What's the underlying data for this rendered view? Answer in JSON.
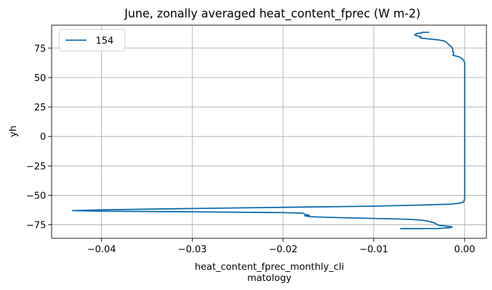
{
  "chart_data": {
    "type": "line",
    "title": "June, zonally averaged heat_content_fprec (W m-2)",
    "xlabel_lines": [
      "heat_content_fprec_monthly_cli",
      "matology"
    ],
    "ylabel": "yh",
    "xlim": [
      -0.0455,
      0.0024
    ],
    "ylim": [
      -86.5,
      94.5
    ],
    "x_ticks": [
      -0.04,
      -0.03,
      -0.02,
      -0.01,
      0.0
    ],
    "x_tick_labels": [
      "−0.04",
      "−0.03",
      "−0.02",
      "−0.01",
      "0.00"
    ],
    "y_ticks": [
      -75,
      -50,
      -25,
      0,
      25,
      50,
      75
    ],
    "y_tick_labels": [
      "−75",
      "−50",
      "−25",
      "0",
      "25",
      "50",
      "75"
    ],
    "grid": true,
    "legend_position": "upper-left",
    "series": [
      {
        "name": "154",
        "color": "#0868ac",
        "points": [
          [
            -0.0039,
            88.4
          ],
          [
            -0.0047,
            88.4
          ],
          [
            -0.0047,
            87.8
          ],
          [
            -0.0052,
            87.5
          ],
          [
            -0.0055,
            86.3
          ],
          [
            -0.0053,
            85.5
          ],
          [
            -0.0048,
            84.6
          ],
          [
            -0.0049,
            83.6
          ],
          [
            -0.0043,
            83.1
          ],
          [
            -0.0038,
            82.7
          ],
          [
            -0.0031,
            82.2
          ],
          [
            -0.0023,
            81.2
          ],
          [
            -0.002,
            79.9
          ],
          [
            -0.0018,
            78.4
          ],
          [
            -0.0016,
            77.1
          ],
          [
            -0.0014,
            75.6
          ],
          [
            -0.0013,
            74.0
          ],
          [
            -0.0013,
            72.0
          ],
          [
            -0.0012,
            70.5
          ],
          [
            -0.0013,
            69.0
          ],
          [
            -0.0009,
            68.2
          ],
          [
            -0.0006,
            67.6
          ],
          [
            -0.0003,
            66.1
          ],
          [
            -0.0001,
            64.6
          ],
          [
            0.0,
            62.5
          ],
          [
            0.0,
            60.0
          ],
          [
            0.0,
            40.0
          ],
          [
            0.0,
            20.0
          ],
          [
            0.0,
            0.0
          ],
          [
            0.0,
            -20.0
          ],
          [
            0.0,
            -40.0
          ],
          [
            0.0,
            -53.0
          ],
          [
            -0.0001,
            -55.5
          ],
          [
            -0.0005,
            -56.6
          ],
          [
            -0.0015,
            -57.5
          ],
          [
            -0.005,
            -58.3
          ],
          [
            -0.01,
            -59.2
          ],
          [
            -0.02,
            -60.2
          ],
          [
            -0.03,
            -61.2
          ],
          [
            -0.04,
            -62.3
          ],
          [
            -0.0432,
            -63.0
          ],
          [
            -0.04,
            -63.5
          ],
          [
            -0.03,
            -64.0
          ],
          [
            -0.02,
            -64.7
          ],
          [
            -0.0178,
            -65.2
          ],
          [
            -0.0175,
            -66.5
          ],
          [
            -0.0171,
            -67.0
          ],
          [
            -0.0176,
            -67.4
          ],
          [
            -0.017,
            -68.2
          ],
          [
            -0.015,
            -68.7
          ],
          [
            -0.012,
            -69.3
          ],
          [
            -0.009,
            -69.8
          ],
          [
            -0.006,
            -70.4
          ],
          [
            -0.0045,
            -71.3
          ],
          [
            -0.0038,
            -72.4
          ],
          [
            -0.0033,
            -73.5
          ],
          [
            -0.0031,
            -74.5
          ],
          [
            -0.0029,
            -75.4
          ],
          [
            -0.0022,
            -76.0
          ],
          [
            -0.0014,
            -76.7
          ],
          [
            -0.0014,
            -77.2
          ],
          [
            -0.002,
            -77.7
          ],
          [
            -0.003,
            -78.2
          ],
          [
            -0.005,
            -78.3
          ],
          [
            -0.0071,
            -78.3
          ]
        ]
      }
    ]
  }
}
